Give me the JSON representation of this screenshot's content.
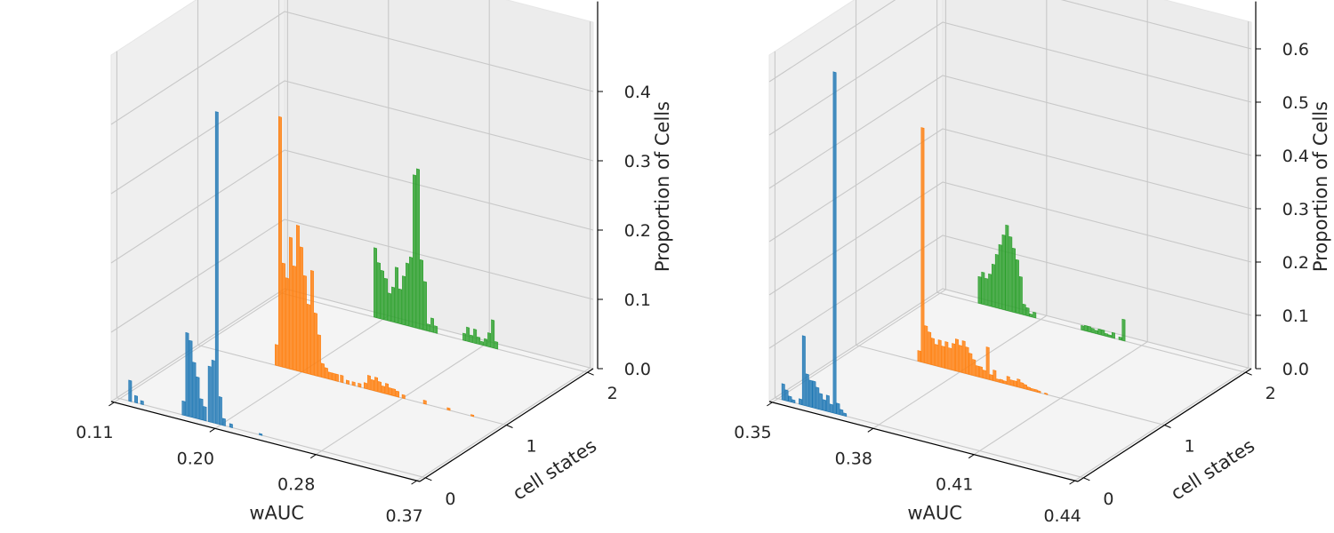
{
  "chart_data": [
    {
      "type": "bar",
      "xlabel": "wAUC",
      "ylabel": "cell states",
      "zlabel": "Proportion of Cells",
      "xlim": [
        0.11,
        0.37
      ],
      "x_ticks": [
        "0.11",
        "0.20",
        "0.28",
        "0.37"
      ],
      "ylim": [
        0,
        2
      ],
      "y_ticks": [
        "0",
        "1",
        "2"
      ],
      "zlim": [
        0,
        0.5
      ],
      "z_ticks": [
        "0.0",
        "0.1",
        "0.2",
        "0.3",
        "0.4"
      ],
      "grid": true,
      "legend": "none",
      "series": [
        {
          "state": 0,
          "color": "#1f77b4",
          "bins": [
            [
              0.12,
              0.03
            ],
            [
              0.125,
              0.01
            ],
            [
              0.13,
              0.005
            ],
            [
              0.165,
              0.02
            ],
            [
              0.168,
              0.12
            ],
            [
              0.171,
              0.11
            ],
            [
              0.174,
              0.08
            ],
            [
              0.177,
              0.06
            ],
            [
              0.18,
              0.03
            ],
            [
              0.183,
              0.02
            ],
            [
              0.187,
              0.08
            ],
            [
              0.19,
              0.09
            ],
            [
              0.193,
              0.45
            ],
            [
              0.196,
              0.04
            ],
            [
              0.199,
              0.01
            ],
            [
              0.205,
              0.005
            ],
            [
              0.23,
              0.002
            ]
          ]
        },
        {
          "state": 1,
          "color": "#ff7f0e",
          "bins": [
            [
              0.175,
              0.03
            ],
            [
              0.178,
              0.36
            ],
            [
              0.181,
              0.15
            ],
            [
              0.184,
              0.13
            ],
            [
              0.187,
              0.19
            ],
            [
              0.19,
              0.15
            ],
            [
              0.193,
              0.21
            ],
            [
              0.196,
              0.18
            ],
            [
              0.199,
              0.14
            ],
            [
              0.202,
              0.1
            ],
            [
              0.205,
              0.15
            ],
            [
              0.208,
              0.09
            ],
            [
              0.211,
              0.06
            ],
            [
              0.214,
              0.02
            ],
            [
              0.217,
              0.015
            ],
            [
              0.22,
              0.01
            ],
            [
              0.223,
              0.01
            ],
            [
              0.226,
              0.01
            ],
            [
              0.23,
              0.01
            ],
            [
              0.235,
              0.005
            ],
            [
              0.24,
              0.005
            ],
            [
              0.245,
              0.005
            ],
            [
              0.25,
              0.008
            ],
            [
              0.253,
              0.02
            ],
            [
              0.256,
              0.015
            ],
            [
              0.259,
              0.02
            ],
            [
              0.262,
              0.015
            ],
            [
              0.265,
              0.01
            ],
            [
              0.268,
              0.015
            ],
            [
              0.271,
              0.01
            ],
            [
              0.274,
              0.01
            ],
            [
              0.277,
              0.008
            ],
            [
              0.282,
              0.005
            ],
            [
              0.3,
              0.005
            ],
            [
              0.32,
              0.003
            ],
            [
              0.34,
              0.002
            ]
          ]
        },
        {
          "state": 2,
          "color": "#2ca02c",
          "bins": [
            [
              0.19,
              0.1
            ],
            [
              0.193,
              0.08
            ],
            [
              0.196,
              0.07
            ],
            [
              0.199,
              0.06
            ],
            [
              0.202,
              0.04
            ],
            [
              0.205,
              0.05
            ],
            [
              0.208,
              0.08
            ],
            [
              0.211,
              0.05
            ],
            [
              0.214,
              0.07
            ],
            [
              0.217,
              0.09
            ],
            [
              0.22,
              0.1
            ],
            [
              0.223,
              0.22
            ],
            [
              0.226,
              0.23
            ],
            [
              0.229,
              0.1
            ],
            [
              0.232,
              0.07
            ],
            [
              0.235,
              0.01
            ],
            [
              0.238,
              0.02
            ],
            [
              0.241,
              0.01
            ],
            [
              0.265,
              0.01
            ],
            [
              0.268,
              0.02
            ],
            [
              0.271,
              0.01
            ],
            [
              0.274,
              0.02
            ],
            [
              0.277,
              0.01
            ],
            [
              0.28,
              0.005
            ],
            [
              0.283,
              0.01
            ],
            [
              0.286,
              0.02
            ],
            [
              0.289,
              0.04
            ],
            [
              0.292,
              0.01
            ]
          ]
        }
      ]
    },
    {
      "type": "bar",
      "xlabel": "wAUC",
      "ylabel": "cell states",
      "zlabel": "Proportion of Cells",
      "xlim": [
        0.35,
        0.44
      ],
      "x_ticks": [
        "0.35",
        "0.38",
        "0.41",
        "0.44"
      ],
      "ylim": [
        0,
        2
      ],
      "y_ticks": [
        "0",
        "1",
        "2"
      ],
      "zlim": [
        0,
        0.65
      ],
      "z_ticks": [
        "0.0",
        "0.1",
        "0.2",
        "0.3",
        "0.4",
        "0.5",
        "0.6"
      ],
      "grid": true,
      "legend": "none",
      "series": [
        {
          "state": 0,
          "color": "#1f77b4",
          "bins": [
            [
              0.352,
              0.03
            ],
            [
              0.353,
              0.02
            ],
            [
              0.354,
              0.01
            ],
            [
              0.355,
              0.005
            ],
            [
              0.357,
              0.01
            ],
            [
              0.358,
              0.13
            ],
            [
              0.359,
              0.06
            ],
            [
              0.36,
              0.05
            ],
            [
              0.361,
              0.05
            ],
            [
              0.362,
              0.04
            ],
            [
              0.363,
              0.03
            ],
            [
              0.364,
              0.02
            ],
            [
              0.365,
              0.03
            ],
            [
              0.366,
              0.015
            ],
            [
              0.367,
              0.64
            ],
            [
              0.368,
              0.02
            ],
            [
              0.369,
              0.01
            ],
            [
              0.37,
              0.005
            ]
          ]
        },
        {
          "state": 1,
          "color": "#ff7f0e",
          "bins": [
            [
              0.368,
              0.02
            ],
            [
              0.369,
              0.44
            ],
            [
              0.37,
              0.07
            ],
            [
              0.371,
              0.06
            ],
            [
              0.372,
              0.05
            ],
            [
              0.373,
              0.04
            ],
            [
              0.374,
              0.05
            ],
            [
              0.375,
              0.04
            ],
            [
              0.376,
              0.05
            ],
            [
              0.377,
              0.04
            ],
            [
              0.378,
              0.05
            ],
            [
              0.379,
              0.06
            ],
            [
              0.38,
              0.05
            ],
            [
              0.381,
              0.06
            ],
            [
              0.382,
              0.05
            ],
            [
              0.383,
              0.04
            ],
            [
              0.384,
              0.03
            ],
            [
              0.385,
              0.02
            ],
            [
              0.386,
              0.02
            ],
            [
              0.387,
              0.015
            ],
            [
              0.388,
              0.06
            ],
            [
              0.389,
              0.01
            ],
            [
              0.39,
              0.02
            ],
            [
              0.391,
              0.005
            ],
            [
              0.392,
              0.006
            ],
            [
              0.393,
              0.005
            ],
            [
              0.394,
              0.015
            ],
            [
              0.395,
              0.01
            ],
            [
              0.396,
              0.01
            ],
            [
              0.397,
              0.015
            ],
            [
              0.398,
              0.01
            ],
            [
              0.399,
              0.008
            ],
            [
              0.4,
              0.005
            ],
            [
              0.401,
              0.004
            ],
            [
              0.402,
              0.004
            ],
            [
              0.403,
              0.003
            ],
            [
              0.405,
              0.002
            ]
          ]
        },
        {
          "state": 2,
          "color": "#2ca02c",
          "bins": [
            [
              0.362,
              0.05
            ],
            [
              0.363,
              0.06
            ],
            [
              0.364,
              0.05
            ],
            [
              0.365,
              0.06
            ],
            [
              0.366,
              0.08
            ],
            [
              0.367,
              0.1
            ],
            [
              0.368,
              0.12
            ],
            [
              0.369,
              0.14
            ],
            [
              0.37,
              0.16
            ],
            [
              0.371,
              0.14
            ],
            [
              0.372,
              0.12
            ],
            [
              0.373,
              0.1
            ],
            [
              0.374,
              0.07
            ],
            [
              0.375,
              0.02
            ],
            [
              0.376,
              0.015
            ],
            [
              0.377,
              0.005
            ],
            [
              0.378,
              0.01
            ],
            [
              0.392,
              0.008
            ],
            [
              0.393,
              0.01
            ],
            [
              0.394,
              0.01
            ],
            [
              0.395,
              0.008
            ],
            [
              0.396,
              0.006
            ],
            [
              0.397,
              0.01
            ],
            [
              0.398,
              0.01
            ],
            [
              0.399,
              0.005
            ],
            [
              0.4,
              0.004
            ],
            [
              0.401,
              0.01
            ],
            [
              0.403,
              0.005
            ],
            [
              0.404,
              0.04
            ]
          ]
        }
      ]
    }
  ]
}
